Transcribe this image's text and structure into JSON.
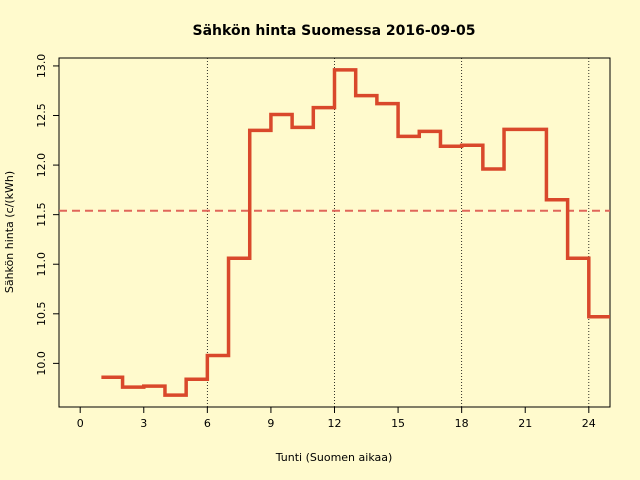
{
  "chart_data": {
    "type": "step",
    "title": "Sähkön hinta Suomessa 2016-09-05",
    "xlabel": "Tunti (Suomen aikaa)",
    "ylabel": "Sähkön hinta (c/(kWh)",
    "x": [
      1,
      2,
      3,
      4,
      5,
      6,
      7,
      8,
      9,
      10,
      11,
      12,
      13,
      14,
      15,
      16,
      17,
      18,
      19,
      20,
      21,
      22,
      23,
      24
    ],
    "series": [
      {
        "color": "#d9482b",
        "values": [
          9.86,
          9.76,
          9.77,
          9.68,
          9.84,
          10.08,
          11.06,
          12.35,
          12.51,
          12.38,
          12.58,
          12.96,
          12.7,
          12.62,
          12.29,
          12.34,
          12.19,
          12.2,
          11.96,
          12.36,
          12.36,
          11.65,
          11.06,
          10.47
        ]
      }
    ],
    "mean_line": 11.54,
    "mean_color": "#e0665a",
    "vlines": [
      6,
      12,
      18,
      24
    ],
    "xlim": [
      -1,
      25
    ],
    "ylim": [
      9.56,
      13.08
    ],
    "xticks": [
      0,
      3,
      6,
      9,
      12,
      15,
      18,
      21,
      24
    ],
    "yticks": [
      {
        "value": 10,
        "label": "10.0"
      },
      10.5,
      {
        "value": 11,
        "label": "11.0"
      },
      11.5,
      {
        "value": 12,
        "label": "12.0"
      },
      12.5,
      {
        "value": 13,
        "label": "13.0"
      }
    ]
  }
}
